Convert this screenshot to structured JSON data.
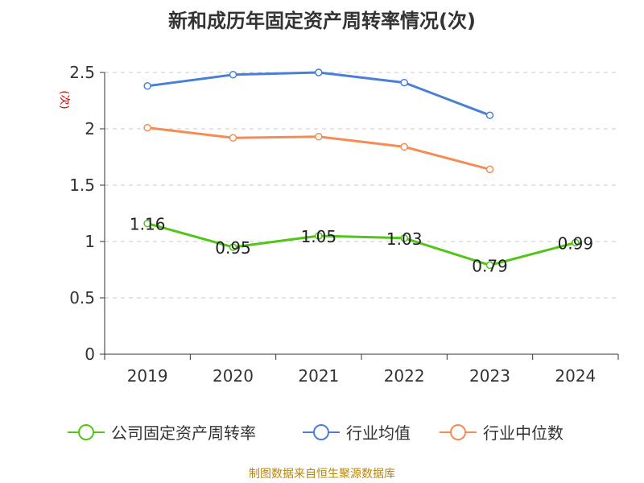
{
  "chart_data": {
    "type": "line",
    "title": "新和成历年固定资产周转率情况(次)",
    "ylabel": "(次)",
    "xlabel": "",
    "categories": [
      "2019",
      "2020",
      "2021",
      "2022",
      "2023",
      "2024"
    ],
    "ylim": [
      0,
      2.5
    ],
    "yticks": [
      "0",
      "0.5",
      "1",
      "1.5",
      "2",
      "2.5"
    ],
    "grid": true,
    "legend_position": "bottom",
    "series": [
      {
        "name": "公司固定资产周转率",
        "color": "#52c41a",
        "values": [
          1.16,
          0.95,
          1.05,
          1.03,
          0.79,
          0.99
        ],
        "labels": [
          "1.16",
          "0.95",
          "1.05",
          "1.03",
          "0.79",
          "0.99"
        ]
      },
      {
        "name": "行业均值",
        "color": "#4a7fd6",
        "values": [
          2.38,
          2.48,
          2.5,
          2.41,
          2.12,
          null
        ]
      },
      {
        "name": "行业中位数",
        "color": "#f58c55",
        "values": [
          2.01,
          1.92,
          1.93,
          1.84,
          1.64,
          null
        ]
      }
    ]
  },
  "source_text": "制图数据来自恒生聚源数据库"
}
